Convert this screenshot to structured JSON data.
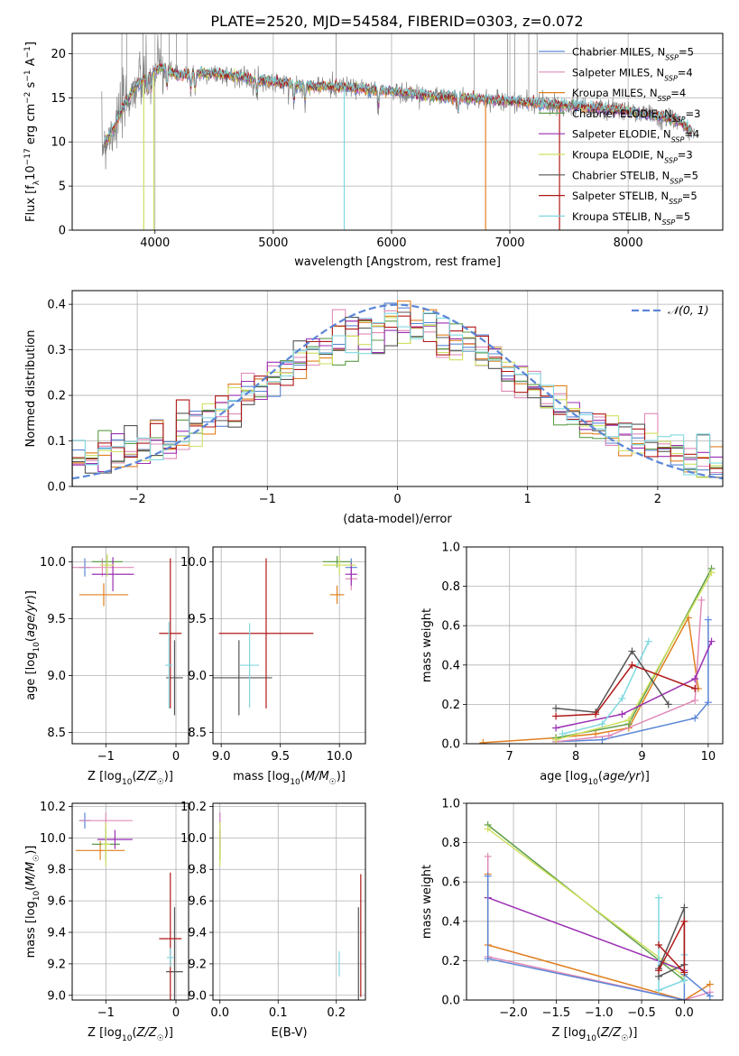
{
  "figure_title": "PLATE=2520, MJD=54584, FIBERID=0303, z=0.072",
  "colors": {
    "chabrier_miles": "#5b86d6",
    "salpeter_miles": "#e08ab8",
    "kroupa_miles": "#e0801f",
    "chabrier_elodie": "#5f9e4a",
    "salpeter_elodie": "#9b2fb3",
    "kroupa_elodie": "#cfe060",
    "chabrier_stelib": "#555555",
    "salpeter_stelib": "#b01818",
    "kroupa_stelib": "#80d8e0",
    "data": "#808080",
    "gaussian": "#5b86d6",
    "grid": "#b0b0b0"
  },
  "chart_data": [
    {
      "id": "spectrum",
      "type": "line",
      "title": "PLATE=2520, MJD=54584, FIBERID=0303, z=0.072",
      "xlabel": "wavelength [Angstrom, rest frame]",
      "ylabel": "Flux [f_λ10^-17 erg cm^-2 s^-1 A^-1]",
      "xlim": [
        3300,
        8800
      ],
      "ylim": [
        0,
        22.3
      ],
      "xticks": [
        4000,
        5000,
        6000,
        7000,
        8000
      ],
      "yticks": [
        0,
        5,
        10,
        15,
        20
      ],
      "grid": true,
      "legend_position": "top-right",
      "legend": [
        {
          "label": "Chabrier MILES",
          "n": "5"
        },
        {
          "label": "Salpeter MILES",
          "n": "4"
        },
        {
          "label": "Kroupa MILES",
          "n": "4"
        },
        {
          "label": "Chabrier ELODIE",
          "n": "3"
        },
        {
          "label": "Salpeter ELODIE",
          "n": "4"
        },
        {
          "label": "Kroupa ELODIE",
          "n": "3"
        },
        {
          "label": "Chabrier STELIB",
          "n": "5"
        },
        {
          "label": "Salpeter STELIB",
          "n": "5"
        },
        {
          "label": "Kroupa STELIB",
          "n": "5"
        }
      ],
      "continuum": {
        "x": [
          3550,
          3650,
          3750,
          3850,
          3950,
          4050,
          4200,
          4400,
          4600,
          4800,
          5000,
          5300,
          5600,
          6000,
          6400,
          6800,
          7200,
          7600,
          8000,
          8400,
          8560
        ],
        "y": [
          9.5,
          11.5,
          14.5,
          16.5,
          17.5,
          18.5,
          17.5,
          17.8,
          17.6,
          17.2,
          16.8,
          16.3,
          16.2,
          15.7,
          15.2,
          14.8,
          14.4,
          14.0,
          13.5,
          12.5,
          11.0
        ]
      }
    },
    {
      "id": "residuals",
      "type": "line",
      "xlabel": "(data-model)/error",
      "ylabel": "Normed distribution",
      "xlim": [
        -2.5,
        2.5
      ],
      "ylim": [
        0,
        0.43
      ],
      "xticks": [
        -2,
        -1,
        0,
        1,
        2
      ],
      "yticks": [
        0.0,
        0.1,
        0.2,
        0.3,
        0.4
      ],
      "grid": true,
      "legend_position": "top-right",
      "legend": [
        {
          "label": "𝒩(0, 1)"
        }
      ],
      "gaussian": {
        "mean": 0,
        "sigma": 1
      }
    },
    {
      "id": "age_vs_Z",
      "type": "scatter",
      "xlabel": "Z [log10(Z/Z☉)]",
      "ylabel": "age [log10(age/yr)]",
      "xlim": [
        -1.48,
        0.18
      ],
      "ylim": [
        8.4,
        10.13
      ],
      "xticks": [
        -1,
        0
      ],
      "yticks": [
        8.5,
        9.0,
        9.5,
        10.0
      ],
      "grid": true,
      "points": [
        {
          "c": "chabrier_miles",
          "x": -1.3,
          "xe": 0.08,
          "y": 9.95,
          "ye": 0.08
        },
        {
          "c": "salpeter_miles",
          "x": -1.05,
          "xe": 0.45,
          "y": 9.95,
          "ye": 0.08
        },
        {
          "c": "kroupa_miles",
          "x": -1.03,
          "xe": 0.35,
          "y": 9.71,
          "ye": 0.1
        },
        {
          "c": "chabrier_elodie",
          "x": -0.98,
          "xe": 0.22,
          "y": 10.0,
          "ye": 0.05
        },
        {
          "c": "salpeter_elodie",
          "x": -0.9,
          "xe": 0.3,
          "y": 9.89,
          "ye": 0.15
        },
        {
          "c": "kroupa_elodie",
          "x": -0.98,
          "xe": 0.1,
          "y": 9.97,
          "ye": 0.1
        },
        {
          "c": "chabrier_stelib",
          "x": -0.02,
          "xe": 0.12,
          "y": 8.98,
          "ye": 0.33
        },
        {
          "c": "salpeter_stelib",
          "x": -0.08,
          "xe": 0.16,
          "y": 9.37,
          "ye": 0.66
        },
        {
          "c": "kroupa_stelib",
          "x": -0.1,
          "xe": 0.05,
          "y": 9.09,
          "ye": 0.38
        }
      ]
    },
    {
      "id": "age_vs_mass",
      "type": "scatter",
      "xlabel": "mass [log10(M/M☉)]",
      "ylabel": "",
      "xlim": [
        8.93,
        10.22
      ],
      "ylim": [
        8.4,
        10.13
      ],
      "xticks": [
        9.0,
        9.5,
        10.0
      ],
      "yticks": [
        8.5,
        9.0,
        9.5,
        10.0
      ],
      "grid": true,
      "points": [
        {
          "c": "chabrier_miles",
          "x": 10.1,
          "xe": 0.05,
          "y": 9.95,
          "ye": 0.08
        },
        {
          "c": "salpeter_miles",
          "x": 10.1,
          "xe": 0.05,
          "y": 9.85,
          "ye": 0.1
        },
        {
          "c": "kroupa_miles",
          "x": 9.98,
          "xe": 0.06,
          "y": 9.71,
          "ye": 0.08
        },
        {
          "c": "chabrier_elodie",
          "x": 9.98,
          "xe": 0.12,
          "y": 10.0,
          "ye": 0.05
        },
        {
          "c": "salpeter_elodie",
          "x": 10.1,
          "xe": 0.05,
          "y": 9.89,
          "ye": 0.1
        },
        {
          "c": "kroupa_elodie",
          "x": 10.0,
          "xe": 0.14,
          "y": 9.97,
          "ye": 0.08
        },
        {
          "c": "chabrier_stelib",
          "x": 9.15,
          "xe": 0.28,
          "y": 8.98,
          "ye": 0.33
        },
        {
          "c": "salpeter_stelib",
          "x": 9.38,
          "xe": 0.4,
          "y": 9.37,
          "ye": 0.66
        },
        {
          "c": "kroupa_stelib",
          "x": 9.24,
          "xe": 0.08,
          "y": 9.09,
          "ye": 0.37
        }
      ]
    },
    {
      "id": "weight_vs_age",
      "type": "line",
      "xlabel": "age [log10(age/yr)]",
      "ylabel": "mass weight",
      "xlim": [
        6.35,
        10.22
      ],
      "ylim": [
        0,
        1.0
      ],
      "xticks": [
        7,
        8,
        9,
        10
      ],
      "yticks": [
        0.0,
        0.2,
        0.4,
        0.6,
        0.8,
        1.0
      ],
      "grid": true,
      "series": [
        {
          "c": "kroupa_miles",
          "x": [
            6.6,
            7.7,
            8.3,
            8.8,
            9.7,
            9.85
          ],
          "y": [
            0.005,
            0.03,
            0.05,
            0.08,
            0.64,
            0.28
          ]
        },
        {
          "c": "chabrier_miles",
          "x": [
            7.7,
            8.4,
            9.8,
            10.0,
            10.0
          ],
          "y": [
            0.01,
            0.02,
            0.13,
            0.21,
            0.63
          ]
        },
        {
          "c": "salpeter_miles",
          "x": [
            7.7,
            8.5,
            9.8,
            9.9
          ],
          "y": [
            0.01,
            0.04,
            0.22,
            0.73
          ]
        },
        {
          "c": "chabrier_elodie",
          "x": [
            7.7,
            8.8,
            10.05
          ],
          "y": [
            0.03,
            0.1,
            0.89
          ]
        },
        {
          "c": "kroupa_elodie",
          "x": [
            7.7,
            8.8,
            10.05
          ],
          "y": [
            0.02,
            0.12,
            0.87
          ]
        },
        {
          "c": "salpeter_elodie",
          "x": [
            7.7,
            8.7,
            9.8,
            10.05
          ],
          "y": [
            0.08,
            0.15,
            0.33,
            0.52
          ]
        },
        {
          "c": "kroupa_stelib",
          "x": [
            7.8,
            8.4,
            8.7,
            9.1
          ],
          "y": [
            0.05,
            0.1,
            0.23,
            0.52
          ]
        },
        {
          "c": "chabrier_stelib",
          "x": [
            7.7,
            8.3,
            8.85,
            9.4
          ],
          "y": [
            0.18,
            0.16,
            0.47,
            0.2
          ]
        },
        {
          "c": "salpeter_stelib",
          "x": [
            7.7,
            8.3,
            8.85,
            9.8
          ],
          "y": [
            0.14,
            0.15,
            0.4,
            0.28
          ]
        }
      ]
    },
    {
      "id": "mass_vs_Z",
      "type": "scatter",
      "xlabel": "Z [log10(Z/Z☉)]",
      "ylabel": "mass [log10(M/M☉)]",
      "xlim": [
        -1.48,
        0.18
      ],
      "ylim": [
        8.97,
        10.22
      ],
      "xticks": [
        -1,
        0
      ],
      "yticks": [
        9.0,
        9.2,
        9.4,
        9.6,
        9.8,
        10.0,
        10.2
      ],
      "grid": true,
      "points": [
        {
          "c": "chabrier_miles",
          "x": -1.3,
          "xe": 0.08,
          "y": 10.11,
          "ye": 0.05
        },
        {
          "c": "salpeter_miles",
          "x": -1.0,
          "xe": 0.38,
          "y": 10.11,
          "ye": 0.05
        },
        {
          "c": "kroupa_miles",
          "x": -1.08,
          "xe": 0.35,
          "y": 9.92,
          "ye": 0.06
        },
        {
          "c": "chabrier_elodie",
          "x": -1.0,
          "xe": 0.2,
          "y": 9.96,
          "ye": 0.1
        },
        {
          "c": "salpeter_elodie",
          "x": -0.87,
          "xe": 0.25,
          "y": 9.99,
          "ye": 0.06
        },
        {
          "c": "kroupa_elodie",
          "x": -1.0,
          "xe": 0.06,
          "y": 9.96,
          "ye": 0.14
        },
        {
          "c": "chabrier_stelib",
          "x": -0.02,
          "xe": 0.12,
          "y": 9.15,
          "ye": 0.41
        },
        {
          "c": "salpeter_stelib",
          "x": -0.08,
          "xe": 0.16,
          "y": 9.36,
          "ye": 0.42
        },
        {
          "c": "kroupa_stelib",
          "x": -0.08,
          "xe": 0.05,
          "y": 9.24,
          "ye": 0.06
        }
      ]
    },
    {
      "id": "mass_vs_ebv",
      "type": "scatter",
      "xlabel": "E(B-V)",
      "ylabel": "",
      "xlim": [
        -0.012,
        0.25
      ],
      "ylim": [
        8.97,
        10.22
      ],
      "xticks": [
        0.0,
        0.1,
        0.2
      ],
      "yticks": [
        9.0,
        9.2,
        9.4,
        9.6,
        9.8,
        10.0,
        10.2
      ],
      "grid": true,
      "points": [
        {
          "c": "chabrier_miles",
          "x": 0.0,
          "xe": 0,
          "y": 10.11,
          "ye": 0.05
        },
        {
          "c": "salpeter_miles",
          "x": 0.0,
          "xe": 0,
          "y": 10.11,
          "ye": 0.05
        },
        {
          "c": "kroupa_miles",
          "x": 0.0,
          "xe": 0,
          "y": 9.92,
          "ye": 0.06
        },
        {
          "c": "chabrier_elodie",
          "x": 0.0,
          "xe": 0,
          "y": 9.96,
          "ye": 0.1
        },
        {
          "c": "salpeter_elodie",
          "x": 0.0,
          "xe": 0,
          "y": 9.99,
          "ye": 0.06
        },
        {
          "c": "kroupa_elodie",
          "x": 0.0,
          "xe": 0,
          "y": 9.96,
          "ye": 0.14
        },
        {
          "c": "chabrier_stelib",
          "x": 0.238,
          "xe": 0,
          "y": 9.15,
          "ye": 0.41
        },
        {
          "c": "salpeter_stelib",
          "x": 0.242,
          "xe": 0,
          "y": 9.38,
          "ye": 0.39
        },
        {
          "c": "kroupa_stelib",
          "x": 0.205,
          "xe": 0,
          "y": 9.2,
          "ye": 0.08
        }
      ]
    },
    {
      "id": "weight_vs_Z",
      "type": "line",
      "xlabel": "Z [log10(Z/Z☉)]",
      "ylabel": "mass weight",
      "xlim": [
        -2.55,
        0.45
      ],
      "ylim": [
        0,
        1.0
      ],
      "xticks": [
        -2.0,
        -1.5,
        -1.0,
        -0.5,
        0.0
      ],
      "yticks": [
        0.0,
        0.2,
        0.4,
        0.6,
        0.8,
        1.0
      ],
      "grid": true,
      "series": [
        {
          "c": "chabrier_elodie",
          "x": [
            -2.3,
            0.0
          ],
          "y": [
            0.89,
            0.1
          ]
        },
        {
          "c": "kroupa_elodie",
          "x": [
            -2.3,
            0.0
          ],
          "y": [
            0.87,
            0.12
          ]
        },
        {
          "c": "salpeter_elodie",
          "x": [
            -2.3,
            0.0
          ],
          "y": [
            0.52,
            0.15
          ]
        },
        {
          "c": "kroupa_miles",
          "x": [
            -2.3,
            -2.3,
            0.0,
            0.3
          ],
          "y": [
            0.64,
            0.28,
            0.0,
            0.08
          ]
        },
        {
          "c": "salpeter_miles",
          "x": [
            -2.3,
            -2.3,
            0.0,
            0.3
          ],
          "y": [
            0.73,
            0.22,
            0.0,
            0.04
          ]
        },
        {
          "c": "chabrier_miles",
          "x": [
            -2.3,
            -2.3,
            0.0,
            0.0,
            0.3
          ],
          "y": [
            0.63,
            0.21,
            0.0,
            0.13,
            0.02
          ]
        },
        {
          "c": "kroupa_stelib",
          "x": [
            -0.3,
            -0.3,
            0.0,
            0.0
          ],
          "y": [
            0.52,
            0.05,
            0.1,
            0.23
          ]
        },
        {
          "c": "chabrier_stelib",
          "x": [
            -0.3,
            0.0,
            0.0,
            -0.3
          ],
          "y": [
            0.12,
            0.18,
            0.47,
            0.16
          ]
        },
        {
          "c": "salpeter_stelib",
          "x": [
            -0.3,
            0.0,
            0.0,
            -0.3
          ],
          "y": [
            0.28,
            0.14,
            0.4,
            0.15
          ]
        }
      ]
    }
  ]
}
